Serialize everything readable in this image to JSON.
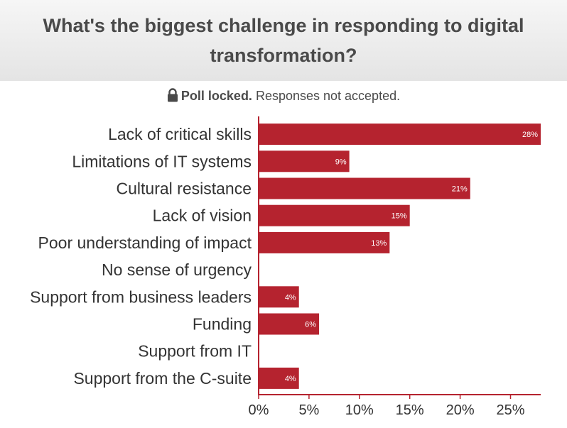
{
  "header": {
    "title": "What's the biggest challenge in responding to digital transformation?"
  },
  "poll_status": {
    "icon": "lock-icon",
    "status_bold": "Poll locked.",
    "status_text": "Responses not accepted."
  },
  "colors": {
    "bar": "#b5232f",
    "axis": "#b5232f",
    "label_text": "#333333",
    "bar_label_text": "#ffffff"
  },
  "chart_data": {
    "type": "bar",
    "orientation": "horizontal",
    "categories": [
      "Lack of critical skills",
      "Limitations of IT systems",
      "Cultural resistance",
      "Lack of vision",
      "Poor understanding of impact",
      "No sense of urgency",
      "Support from business leaders",
      "Funding",
      "Support from IT",
      "Support from the C-suite"
    ],
    "values": [
      28,
      9,
      21,
      15,
      13,
      0,
      4,
      6,
      0,
      4
    ],
    "data_labels": [
      "28%",
      "9%",
      "21%",
      "15%",
      "13%",
      "",
      "4%",
      "6%",
      "",
      "4%"
    ],
    "xlim": [
      0,
      28
    ],
    "x_ticks": [
      0,
      5,
      10,
      15,
      20,
      25
    ],
    "x_tick_labels": [
      "0%",
      "5%",
      "10%",
      "15%",
      "20%",
      "25%"
    ],
    "grid": false,
    "legend": "none"
  }
}
